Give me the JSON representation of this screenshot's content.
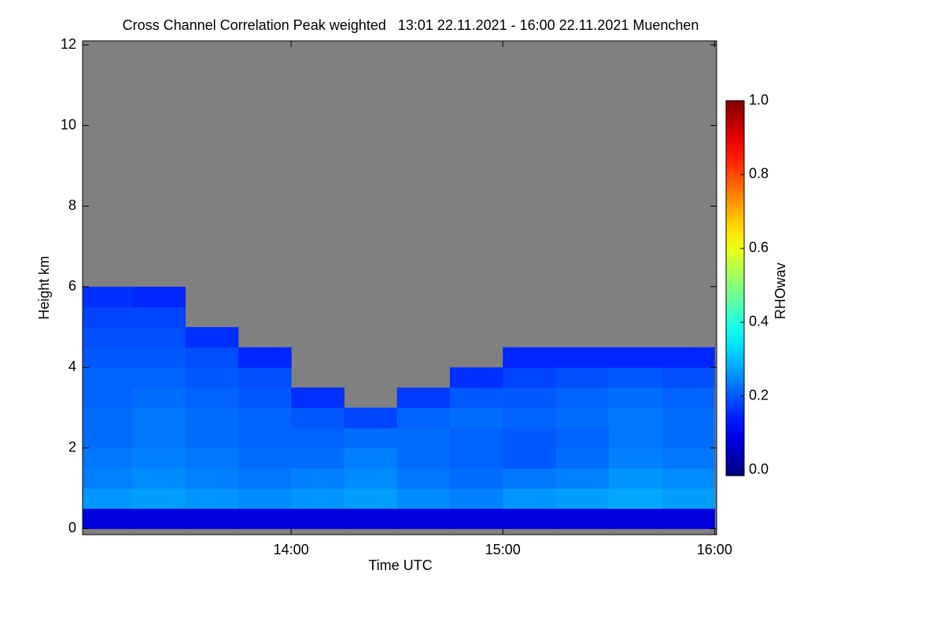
{
  "chart_data": {
    "type": "heatmap",
    "title": "Cross Channel Correlation Peak weighted   13:01 22.11.2021 - 16:00 22.11.2021 Muenchen",
    "x_label": "Time UTC",
    "y_label": "Height km",
    "colorbar_label": "RHOwav",
    "colormap": "jet",
    "missing_color": "#808080",
    "xlim": [
      13.015,
      16.01
    ],
    "xticks": [
      {
        "value": 14,
        "label": "14:00"
      },
      {
        "value": 15,
        "label": "15:00"
      },
      {
        "value": 16,
        "label": "16:00"
      }
    ],
    "ylim": [
      -0.15,
      12.1
    ],
    "yticks": [
      0,
      2,
      4,
      6,
      8,
      10,
      12
    ],
    "zlim": [
      -0.015,
      1.0
    ],
    "zticks": [
      {
        "value": 0,
        "label": "0.0"
      },
      {
        "value": 0.2,
        "label": "0.2"
      },
      {
        "value": 0.4,
        "label": "0.4"
      },
      {
        "value": 0.6,
        "label": "0.6"
      },
      {
        "value": 0.8,
        "label": "0.8"
      },
      {
        "value": 1,
        "label": "1.0"
      }
    ],
    "x": [
      13.125,
      13.375,
      13.625,
      13.875,
      14.125,
      14.375,
      14.625,
      14.875,
      15.125,
      15.375,
      15.625,
      15.875
    ],
    "y": [
      0.25,
      0.75,
      1.25,
      1.75,
      2.25,
      2.75,
      3.25,
      3.75,
      4.25,
      4.75,
      5.25,
      5.75,
      6.25,
      6.75
    ],
    "z": [
      [
        0.08,
        0.08,
        0.08,
        0.08,
        0.08,
        0.08,
        0.08,
        0.08,
        0.08,
        0.08,
        0.08,
        0.08
      ],
      [
        0.26,
        0.27,
        0.26,
        0.25,
        0.26,
        0.27,
        0.25,
        0.24,
        0.26,
        0.27,
        0.28,
        0.27
      ],
      [
        0.24,
        0.25,
        0.24,
        0.23,
        0.24,
        0.25,
        0.23,
        0.22,
        0.23,
        0.24,
        0.26,
        0.25
      ],
      [
        0.23,
        0.24,
        0.23,
        0.22,
        0.22,
        0.24,
        0.22,
        0.21,
        0.2,
        0.22,
        0.24,
        0.23
      ],
      [
        0.22,
        0.23,
        0.22,
        0.21,
        0.21,
        0.22,
        0.22,
        0.21,
        0.2,
        0.21,
        0.23,
        0.22
      ],
      [
        0.22,
        0.23,
        0.22,
        0.21,
        0.2,
        0.18,
        0.21,
        0.22,
        0.21,
        0.22,
        0.23,
        0.22
      ],
      [
        0.21,
        0.22,
        0.21,
        0.2,
        0.16,
        null,
        0.17,
        0.2,
        0.2,
        0.21,
        0.22,
        0.21
      ],
      [
        0.21,
        0.21,
        0.2,
        0.19,
        null,
        null,
        null,
        0.16,
        0.18,
        0.19,
        0.2,
        0.19
      ],
      [
        0.2,
        0.2,
        0.19,
        0.15,
        null,
        null,
        null,
        null,
        0.15,
        0.15,
        0.15,
        0.15
      ],
      [
        0.19,
        0.19,
        0.16,
        null,
        null,
        null,
        null,
        null,
        null,
        null,
        null,
        null
      ],
      [
        0.18,
        0.18,
        null,
        null,
        null,
        null,
        null,
        null,
        null,
        null,
        null,
        null
      ],
      [
        0.16,
        0.15,
        null,
        null,
        null,
        null,
        null,
        null,
        null,
        null,
        null,
        null
      ],
      [
        null,
        null,
        null,
        null,
        null,
        null,
        null,
        null,
        null,
        null,
        null,
        null
      ],
      [
        null,
        null,
        null,
        null,
        null,
        null,
        null,
        null,
        null,
        null,
        null,
        null
      ]
    ]
  }
}
